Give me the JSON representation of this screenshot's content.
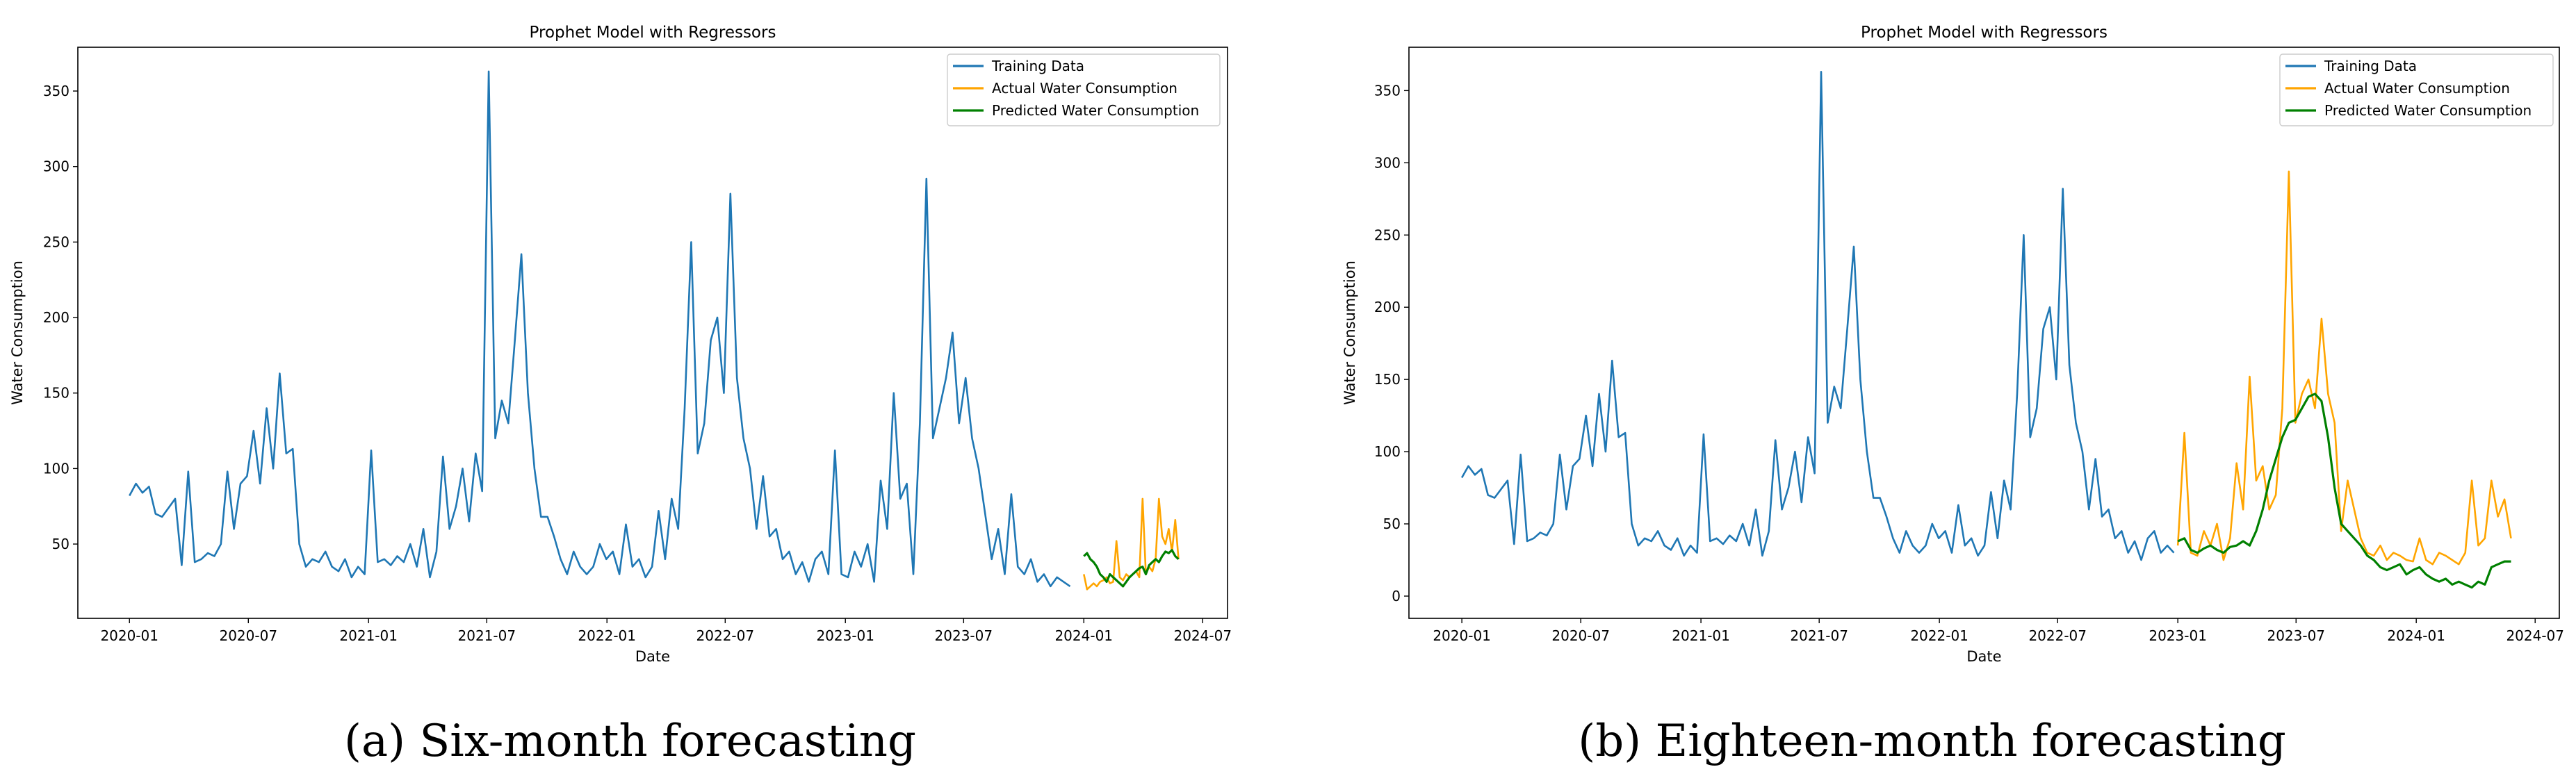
{
  "chart_data": [
    {
      "type": "line",
      "caption": "(a) Six-month forecasting",
      "title": "Prophet Model with Regressors",
      "xlabel": "Date",
      "ylabel": "Water Consumption",
      "xlim": [
        "2019-10-14",
        "2024-08-08"
      ],
      "ylim": [
        0.8,
        379
      ],
      "xticks": [
        {
          "date": "2020-01-01",
          "label": "2020-01"
        },
        {
          "date": "2020-07-01",
          "label": "2020-07"
        },
        {
          "date": "2021-01-01",
          "label": "2021-01"
        },
        {
          "date": "2021-07-01",
          "label": "2021-07"
        },
        {
          "date": "2022-01-01",
          "label": "2022-01"
        },
        {
          "date": "2022-07-01",
          "label": "2022-07"
        },
        {
          "date": "2023-01-01",
          "label": "2023-01"
        },
        {
          "date": "2023-07-01",
          "label": "2023-07"
        },
        {
          "date": "2024-01-01",
          "label": "2024-01"
        },
        {
          "date": "2024-07-01",
          "label": "2024-07"
        }
      ],
      "yticks": [
        50,
        100,
        150,
        200,
        250,
        300,
        350
      ],
      "legend_position": "top-right",
      "series": [
        {
          "name": "Training Data",
          "color": "#1f77b4",
          "start": "2020-01-01",
          "step_days": 10,
          "values": [
            82,
            90,
            84,
            88,
            70,
            68,
            74,
            80,
            36,
            98,
            38,
            40,
            44,
            42,
            50,
            98,
            60,
            90,
            95,
            125,
            90,
            140,
            100,
            163,
            110,
            113,
            50,
            35,
            40,
            38,
            45,
            35,
            32,
            40,
            28,
            35,
            30,
            112,
            38,
            40,
            36,
            42,
            38,
            50,
            35,
            60,
            28,
            45,
            108,
            60,
            75,
            100,
            65,
            110,
            85,
            363,
            120,
            145,
            130,
            185,
            242,
            150,
            100,
            68,
            68,
            55,
            40,
            30,
            45,
            35,
            30,
            35,
            50,
            40,
            45,
            30,
            63,
            35,
            40,
            28,
            35,
            72,
            40,
            80,
            60,
            140,
            250,
            110,
            130,
            185,
            200,
            150,
            282,
            160,
            120,
            100,
            60,
            95,
            55,
            60,
            40,
            45,
            30,
            38,
            25,
            40,
            45,
            30,
            112,
            30,
            28,
            45,
            35,
            50,
            25,
            92,
            60,
            150,
            80,
            90,
            30,
            130,
            292,
            120,
            140,
            160,
            190,
            130,
            160,
            120,
            100,
            70,
            40,
            60,
            30,
            83,
            35,
            30,
            40,
            25,
            30,
            22,
            28,
            25,
            22
          ]
        },
        {
          "name": "Actual Water Consumption",
          "color": "#ffa500",
          "start": "2024-01-01",
          "step_days": 5,
          "values": [
            30,
            20,
            22,
            24,
            22,
            25,
            26,
            28,
            24,
            25,
            52,
            28,
            26,
            30,
            28,
            30,
            32,
            28,
            80,
            30,
            35,
            32,
            40,
            80,
            55,
            50,
            60,
            45,
            66,
            40
          ]
        },
        {
          "name": "Predicted Water Consumption",
          "color": "#008000",
          "start": "2024-01-01",
          "step_days": 5,
          "values": [
            42,
            44,
            40,
            38,
            35,
            30,
            28,
            25,
            30,
            28,
            26,
            24,
            22,
            25,
            28,
            30,
            32,
            34,
            35,
            30,
            36,
            38,
            40,
            38,
            42,
            45,
            44,
            46,
            42,
            40
          ]
        }
      ]
    },
    {
      "type": "line",
      "caption": "(b) Eighteen-month forecasting",
      "title": "Prophet Model with Regressors",
      "xlabel": "Date",
      "ylabel": "Water Consumption",
      "xlim": [
        "2019-10-12",
        "2024-08-07"
      ],
      "ylim": [
        -15.4,
        380
      ],
      "xticks": [
        {
          "date": "2020-01-01",
          "label": "2020-01"
        },
        {
          "date": "2020-07-01",
          "label": "2020-07"
        },
        {
          "date": "2021-01-01",
          "label": "2021-01"
        },
        {
          "date": "2021-07-01",
          "label": "2021-07"
        },
        {
          "date": "2022-01-01",
          "label": "2022-01"
        },
        {
          "date": "2022-07-01",
          "label": "2022-07"
        },
        {
          "date": "2023-01-01",
          "label": "2023-01"
        },
        {
          "date": "2023-07-01",
          "label": "2023-07"
        },
        {
          "date": "2024-01-01",
          "label": "2024-01"
        },
        {
          "date": "2024-07-01",
          "label": "2024-07"
        }
      ],
      "yticks": [
        0,
        50,
        100,
        150,
        200,
        250,
        300,
        350
      ],
      "legend_position": "top-right",
      "series": [
        {
          "name": "Training Data",
          "color": "#1f77b4",
          "start": "2020-01-01",
          "step_days": 10,
          "values": [
            82,
            90,
            84,
            88,
            70,
            68,
            74,
            80,
            36,
            98,
            38,
            40,
            44,
            42,
            50,
            98,
            60,
            90,
            95,
            125,
            90,
            140,
            100,
            163,
            110,
            113,
            50,
            35,
            40,
            38,
            45,
            35,
            32,
            40,
            28,
            35,
            30,
            112,
            38,
            40,
            36,
            42,
            38,
            50,
            35,
            60,
            28,
            45,
            108,
            60,
            75,
            100,
            65,
            110,
            85,
            363,
            120,
            145,
            130,
            185,
            242,
            150,
            100,
            68,
            68,
            55,
            40,
            30,
            45,
            35,
            30,
            35,
            50,
            40,
            45,
            30,
            63,
            35,
            40,
            28,
            35,
            72,
            40,
            80,
            60,
            140,
            250,
            110,
            130,
            185,
            200,
            150,
            282,
            160,
            120,
            100,
            60,
            95,
            55,
            60,
            40,
            45,
            30,
            38,
            25,
            40,
            45,
            30,
            35,
            30
          ]
        },
        {
          "name": "Actual Water Consumption",
          "color": "#ffa500",
          "start": "2023-01-01",
          "step_days": 10,
          "values": [
            35,
            113,
            30,
            28,
            45,
            35,
            50,
            25,
            40,
            92,
            60,
            152,
            80,
            90,
            60,
            70,
            130,
            294,
            120,
            140,
            150,
            130,
            192,
            140,
            120,
            45,
            80,
            60,
            40,
            30,
            28,
            35,
            25,
            30,
            28,
            25,
            24,
            40,
            25,
            22,
            30,
            28,
            25,
            22,
            30,
            80,
            35,
            40,
            80,
            55,
            67,
            40
          ]
        },
        {
          "name": "Predicted Water Consumption",
          "color": "#008000",
          "start": "2023-01-01",
          "step_days": 10,
          "values": [
            38,
            40,
            32,
            30,
            33,
            35,
            32,
            30,
            34,
            35,
            38,
            35,
            45,
            60,
            80,
            95,
            110,
            120,
            122,
            130,
            138,
            140,
            135,
            110,
            75,
            50,
            45,
            40,
            35,
            28,
            25,
            20,
            18,
            20,
            22,
            15,
            18,
            20,
            15,
            12,
            10,
            12,
            8,
            10,
            8,
            6,
            10,
            8,
            20,
            22,
            24,
            24
          ]
        }
      ]
    }
  ]
}
